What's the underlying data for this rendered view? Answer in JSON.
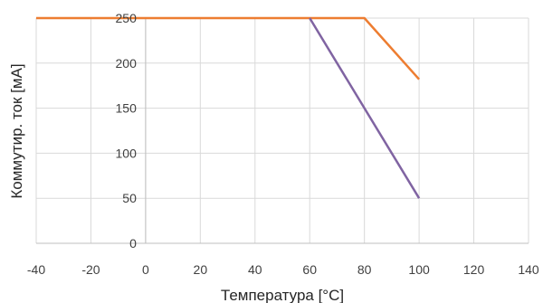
{
  "chart_data": {
    "type": "line",
    "title": "",
    "xlabel": "Температура [°C]",
    "ylabel": "Коммутир. ток [мА]",
    "xlim": [
      -40,
      140
    ],
    "ylim": [
      0,
      250
    ],
    "xticks": [
      -40,
      -20,
      0,
      20,
      40,
      60,
      80,
      100,
      120,
      140
    ],
    "yticks": [
      0,
      50,
      100,
      150,
      200,
      250
    ],
    "grid": true,
    "legend": "none",
    "series": [
      {
        "color": "#ED7D31",
        "x": [
          -40,
          80,
          100
        ],
        "y": [
          250,
          250,
          182
        ]
      },
      {
        "color": "#8064A2",
        "x": [
          60,
          100
        ],
        "y": [
          250,
          50
        ]
      }
    ]
  }
}
